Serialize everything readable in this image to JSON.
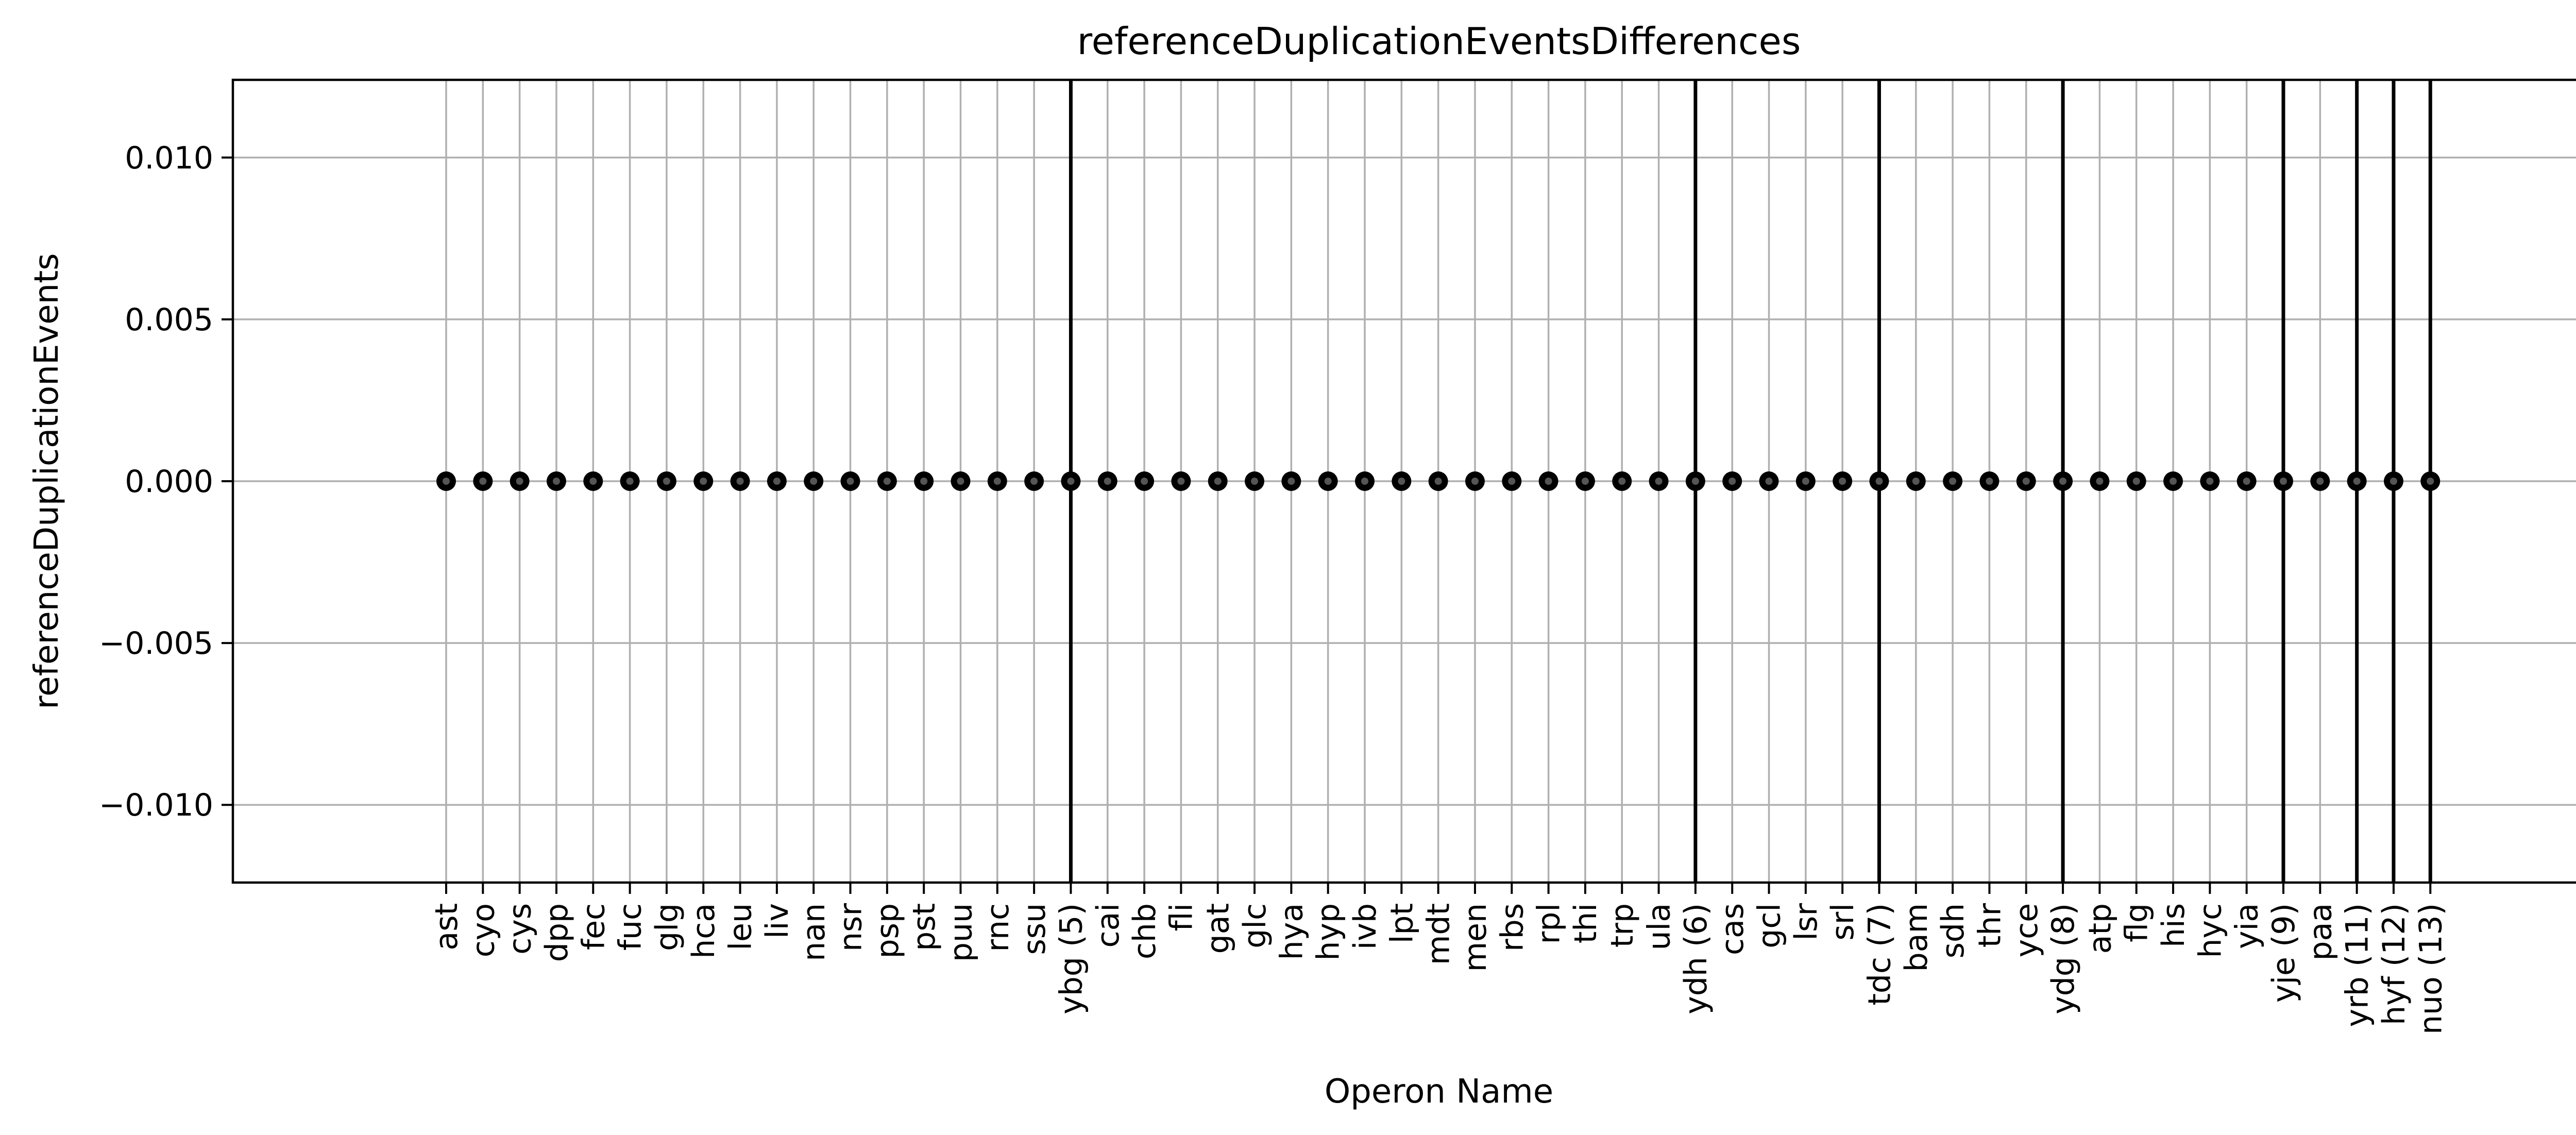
{
  "chart_data": {
    "type": "scatter",
    "title": "referenceDuplicationEventsDifferences",
    "xlabel": "Operon Name",
    "ylabel": "referenceDuplicationEvents",
    "ylim": [
      -0.0124,
      0.0124
    ],
    "yticks": [
      -0.01,
      -0.005,
      0.0,
      0.005,
      0.01
    ],
    "yticklabels": [
      "−0.010",
      "−0.005",
      "0.000",
      "0.005",
      "0.010"
    ],
    "grid": true,
    "categories": [
      "ast",
      "cyo",
      "cys",
      "dpp",
      "fec",
      "fuc",
      "glg",
      "hca",
      "leu",
      "liv",
      "nan",
      "nsr",
      "psp",
      "pst",
      "puu",
      "rnc",
      "ssu",
      "ybg (5)",
      "cai",
      "chb",
      "fli",
      "gat",
      "glc",
      "hya",
      "hyp",
      "ivb",
      "lpt",
      "mdt",
      "men",
      "rbs",
      "rpl",
      "thi",
      "trp",
      "ula",
      "ydh (6)",
      "cas",
      "gcl",
      "lsr",
      "srl",
      "tdc (7)",
      "bam",
      "sdh",
      "thr",
      "yce",
      "ydg (8)",
      "atp",
      "flg",
      "his",
      "hyc",
      "yia",
      "yje (9)",
      "paa",
      "yrb (11)",
      "hyf (12)",
      "nuo (13)"
    ],
    "values": [
      0,
      0,
      0,
      0,
      0,
      0,
      0,
      0,
      0,
      0,
      0,
      0,
      0,
      0,
      0,
      0,
      0,
      0,
      0,
      0,
      0,
      0,
      0,
      0,
      0,
      0,
      0,
      0,
      0,
      0,
      0,
      0,
      0,
      0,
      0,
      0,
      0,
      0,
      0,
      0,
      0,
      0,
      0,
      0,
      0,
      0,
      0,
      0,
      0,
      0,
      0,
      0,
      0,
      0,
      0
    ],
    "group_boundaries": [
      "ybg (5)",
      "ydh (6)",
      "tdc (7)",
      "ydg (8)",
      "yje (9)",
      "yrb (11)",
      "hyf (12)",
      "nuo (13)"
    ],
    "colors": {
      "points": "#000000",
      "grid": "#b0b0b0",
      "boundary": "#000000"
    }
  }
}
